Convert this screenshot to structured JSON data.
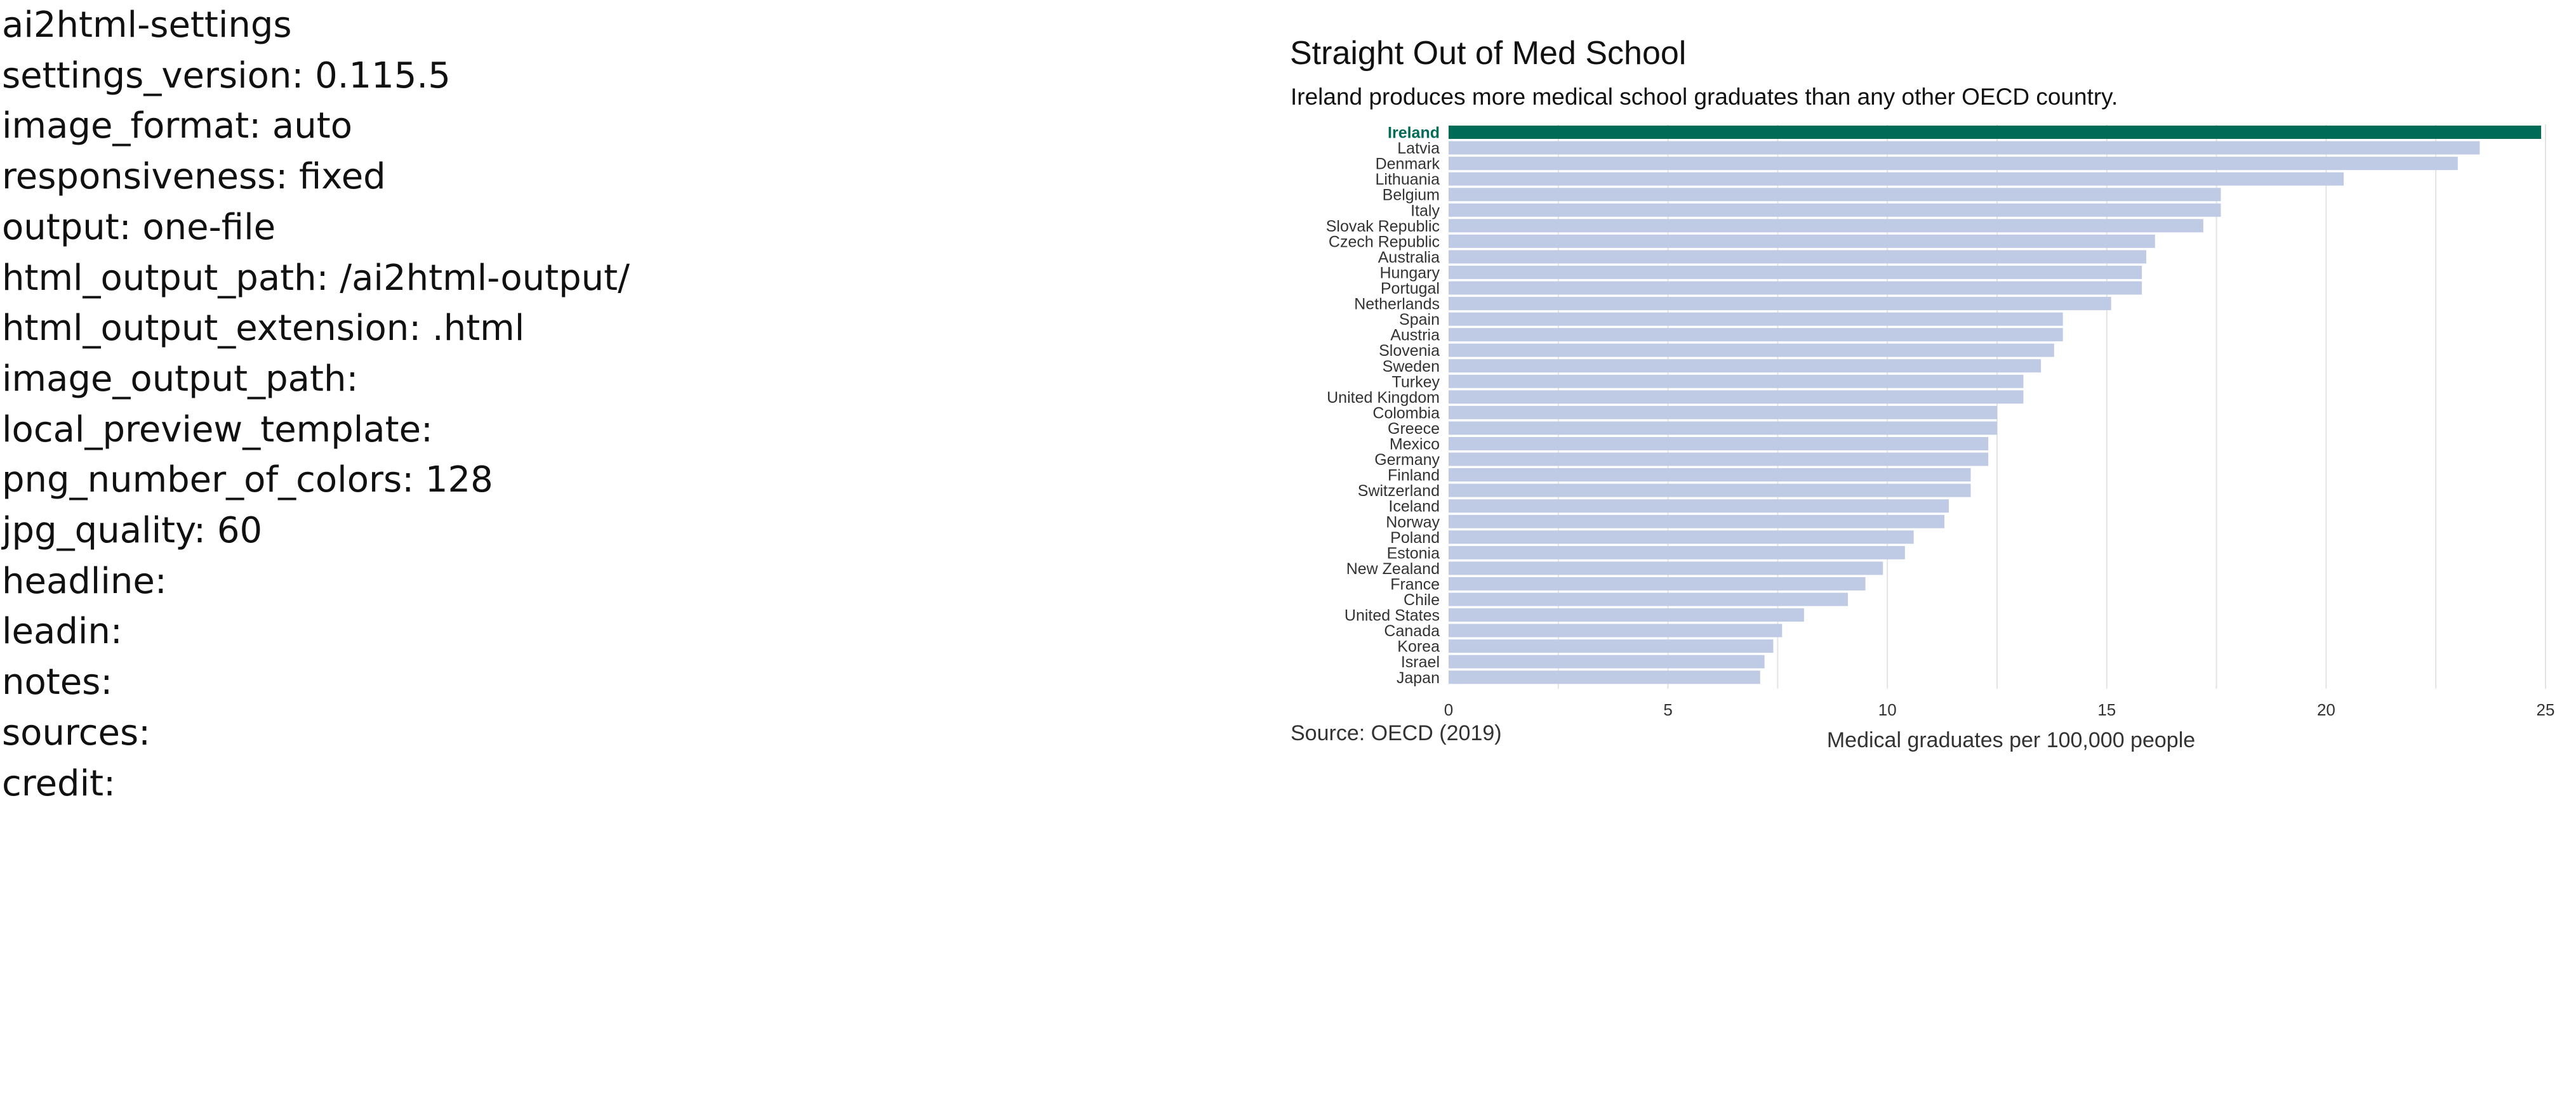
{
  "settings": {
    "lines": [
      "ai2html-settings",
      "settings_version: 0.115.5",
      "image_format: auto",
      "responsiveness: fixed",
      "output: one-file",
      "html_output_path: /ai2html-output/",
      "html_output_extension: .html",
      "image_output_path:",
      "local_preview_template:",
      "png_number_of_colors: 128",
      "jpg_quality: 60",
      "headline:",
      "leadin:",
      "notes:",
      "sources:",
      "credit:"
    ]
  },
  "colors": {
    "highlight": "#006b56",
    "bar": "#bfcbe4",
    "grid": "#e3e3e3",
    "label": "#333333"
  },
  "chart_data": {
    "type": "bar",
    "orientation": "horizontal",
    "title": "Straight Out of Med School",
    "subtitle": "Ireland produces more medical school graduates than any other OECD country.",
    "source": "Source: OECD (2019)",
    "xlabel": "Medical graduates per 100,000 people",
    "ylabel": "",
    "xlim": [
      0,
      25
    ],
    "xticks": [
      0,
      5,
      10,
      15,
      20,
      25
    ],
    "grid": true,
    "highlight_category": "Ireland",
    "categories": [
      "Ireland",
      "Latvia",
      "Denmark",
      "Lithuania",
      "Belgium",
      "Italy",
      "Slovak Republic",
      "Czech Republic",
      "Australia",
      "Hungary",
      "Portugal",
      "Netherlands",
      "Spain",
      "Austria",
      "Slovenia",
      "Sweden",
      "Turkey",
      "United Kingdom",
      "Colombia",
      "Greece",
      "Mexico",
      "Germany",
      "Finland",
      "Switzerland",
      "Iceland",
      "Norway",
      "Poland",
      "Estonia",
      "New Zealand",
      "France",
      "Chile",
      "United States",
      "Canada",
      "Korea",
      "Israel",
      "Japan"
    ],
    "values": [
      24.9,
      23.5,
      23.0,
      20.4,
      17.6,
      17.6,
      17.2,
      16.1,
      15.9,
      15.8,
      15.8,
      15.1,
      14.0,
      14.0,
      13.8,
      13.5,
      13.1,
      13.1,
      12.5,
      12.5,
      12.3,
      12.3,
      11.9,
      11.9,
      11.4,
      11.3,
      10.6,
      10.4,
      9.9,
      9.5,
      9.1,
      8.1,
      7.6,
      7.4,
      7.2,
      7.1
    ]
  }
}
